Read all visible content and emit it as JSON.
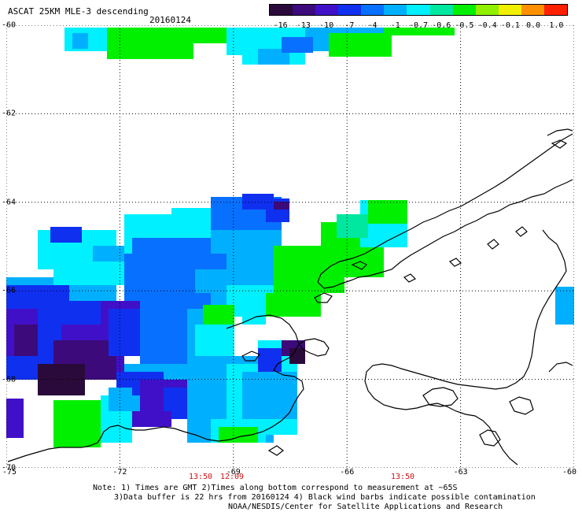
{
  "title": "ASCAT 25KM MLE-3 descending",
  "date": "20160124",
  "colorbar": {
    "labels": [
      "-16",
      "-13",
      "-10",
      "-7",
      "-4",
      "-1",
      "-0.7",
      "-0.6",
      "-0.5",
      "-0.4",
      "-0.1",
      "0.0",
      "1.0"
    ],
    "colors": [
      "#2a0a3a",
      "#3c0a7a",
      "#4010c8",
      "#1030f0",
      "#0870ff",
      "#00b0ff",
      "#00f0ff",
      "#00e8a0",
      "#00f000",
      "#90f000",
      "#f0f000",
      "#ff9000",
      "#ff2000"
    ]
  },
  "lat_labels": [
    "-60",
    "-62",
    "-64",
    "-66",
    "-68",
    "-70"
  ],
  "lon_labels": [
    "-75",
    "-72",
    "-69",
    "-66",
    "-63",
    "-60"
  ],
  "times": [
    {
      "label": "13:50"
    },
    {
      "label": "12:09"
    },
    {
      "label": "13:50"
    }
  ],
  "notes": [
    "Note: 1) Times are GMT 2)Times along bottom correspond to measurement at ~65S",
    "3)Data buffer is 22 hrs from 20160124 4) Black wind barbs indicate possible contamination",
    "NOAA/NESDIS/Center for Satellite Applications and Research"
  ]
}
